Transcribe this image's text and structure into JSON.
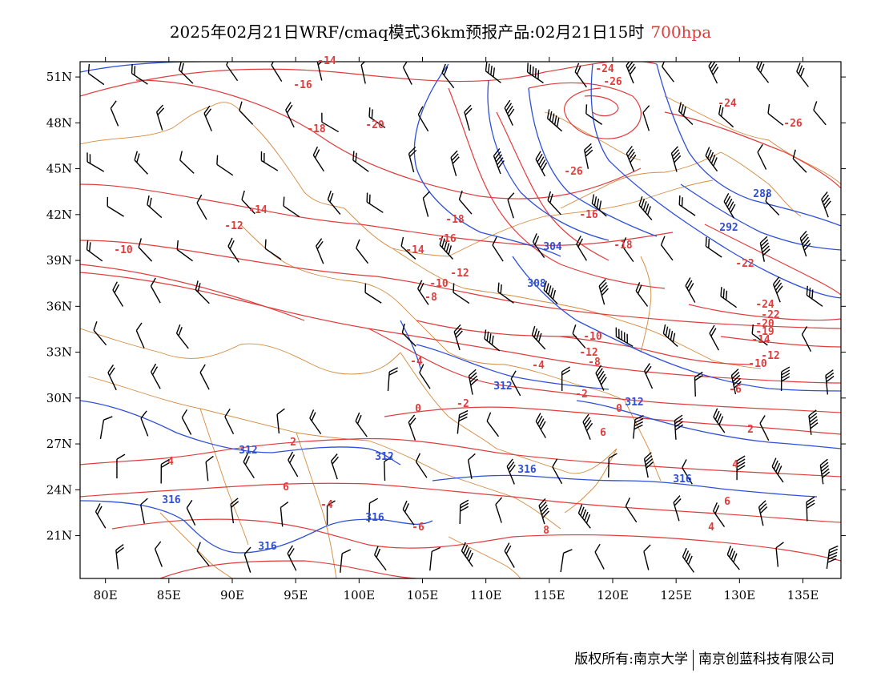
{
  "header": {
    "title": "2025年02月21日WRF/cmaq模式36km预报产品:02月21日15时",
    "level": "700hpa"
  },
  "axes": {
    "lat_labels": [
      "51N",
      "48N",
      "45N",
      "42N",
      "39N",
      "36N",
      "33N",
      "30N",
      "27N",
      "24N",
      "21N"
    ],
    "lon_labels": [
      "80E",
      "85E",
      "90E",
      "95E",
      "100E",
      "105E",
      "110E",
      "115E",
      "120E",
      "125E",
      "130E",
      "135E"
    ]
  },
  "map": {
    "lon_range": [
      78,
      138
    ],
    "lat_range": [
      18.2,
      52
    ],
    "temperature_labels": [
      "-14",
      "-16",
      "-18",
      "-20",
      "-24",
      "-26",
      "-26",
      "-24",
      "-26",
      "-18",
      "-16",
      "-14",
      "-12",
      "-10",
      "-8",
      "-10",
      "-12",
      "-14",
      "-16",
      "-18",
      "-22",
      "-24",
      "-22",
      "-20",
      "-19",
      "-14",
      "-12",
      "-10",
      "-12",
      "-10",
      "-8",
      "-6",
      "-4",
      "-2",
      "0",
      "2",
      "4",
      "6",
      "-4",
      "-6",
      "-4",
      "-2",
      "0",
      "2",
      "4",
      "6",
      "4",
      "6",
      "8"
    ],
    "height_labels": [
      "288",
      "292",
      "304",
      "308",
      "312",
      "312",
      "312",
      "312",
      "316",
      "316",
      "316",
      "316",
      "316"
    ],
    "colors": {
      "temperature": "#e03c3c",
      "height": "#2f4fd8",
      "border": "#d4893c",
      "wind": "#000000"
    }
  },
  "footer": {
    "copyright": "版权所有:南京大学",
    "company": "南京创蓝科技有限公司"
  }
}
